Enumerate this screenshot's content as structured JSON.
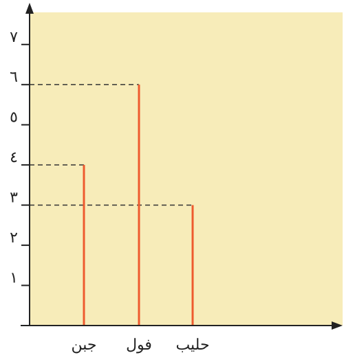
{
  "chart_data": {
    "type": "bar",
    "orientation": "vertical-line-bars",
    "categories": [
      "جبن",
      "فول",
      "حليب"
    ],
    "values": [
      4,
      6,
      3
    ],
    "ylim": [
      0,
      7.8
    ],
    "yticks": [
      1,
      2,
      3,
      4,
      5,
      6,
      7
    ],
    "ytick_labels": [
      "١",
      "٢",
      "٣",
      "٤",
      "٥",
      "٦",
      "٧"
    ],
    "title": "",
    "xlabel": "",
    "ylabel": "",
    "grid": false,
    "guide_lines": "dashed",
    "colors": {
      "plot_background": "#f7ecb9",
      "bar": "#ee5a2e",
      "axis": "#222222",
      "guide": "#333333"
    }
  }
}
